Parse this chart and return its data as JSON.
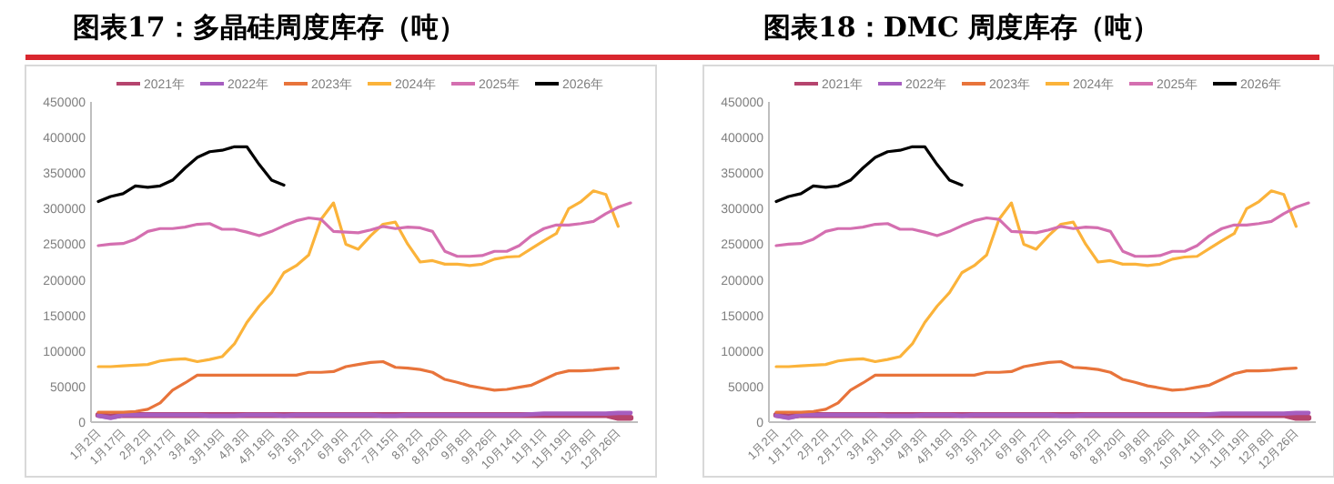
{
  "chart_data": [
    {
      "type": "line",
      "title": "图表17：多晶硅周度库存（吨）",
      "legend": "top",
      "grid": false,
      "marker": "none",
      "categories": [
        "1月2日",
        null,
        "1月17日",
        null,
        "2月2日",
        null,
        "2月17日",
        null,
        "3月4日",
        null,
        "3月19日",
        null,
        "4月3日",
        null,
        "4月18日",
        null,
        "5月3日",
        null,
        "5月21日",
        null,
        "6月9日",
        null,
        "6月27日",
        null,
        "7月15日",
        null,
        "8月2日",
        null,
        "8月20日",
        null,
        "9月8日",
        null,
        "9月26日",
        null,
        "10月14日",
        null,
        "11月1日",
        null,
        "11月19日",
        null,
        "12月8日",
        null,
        "12月26日",
        null
      ],
      "ylim": [
        0,
        450000
      ],
      "yticks": [
        0,
        50000,
        100000,
        150000,
        200000,
        250000,
        300000,
        350000,
        400000,
        450000
      ],
      "series": [
        {
          "name": "2021年",
          "color": "#b5446e",
          "values": [
            10000,
            8000,
            10000,
            10000,
            10000,
            10000,
            10000,
            10000,
            10000,
            10000,
            10000,
            10000,
            10000,
            10000,
            10000,
            10000,
            10000,
            10000,
            10000,
            10000,
            10000,
            10000,
            10000,
            10000,
            10000,
            10000,
            10000,
            10000,
            10000,
            10000,
            10000,
            10000,
            10000,
            10000,
            10000,
            10000,
            10000,
            10000,
            10000,
            10000,
            10000,
            10000,
            6000,
            6000
          ]
        },
        {
          "name": "2022年",
          "color": "#a65ec0",
          "values": [
            9000,
            6000,
            10000,
            10000,
            10000,
            10000,
            10000,
            10000,
            10000,
            9000,
            9000,
            9000,
            10000,
            10000,
            10000,
            9000,
            10000,
            10000,
            10000,
            10000,
            10000,
            10000,
            10000,
            9000,
            9000,
            10000,
            10000,
            10000,
            10000,
            10000,
            10000,
            10000,
            10000,
            10000,
            10000,
            11000,
            12000,
            12000,
            12000,
            12000,
            12000,
            12000,
            13000,
            13000
          ]
        },
        {
          "name": "2023年",
          "color": "#e8743b",
          "values": [
            14000,
            14000,
            14000,
            15000,
            18000,
            27000,
            45000,
            55000,
            66000,
            66000,
            66000,
            66000,
            66000,
            66000,
            66000,
            66000,
            66000,
            70000,
            70000,
            71000,
            78000,
            81000,
            84000,
            85000,
            77000,
            76000,
            74000,
            70000,
            60000,
            56000,
            51000,
            48000,
            45000,
            46000,
            49000,
            52000,
            60000,
            68000,
            72000,
            72000,
            73000,
            75000,
            76000,
            null
          ]
        },
        {
          "name": "2024年",
          "color": "#fbb33a",
          "values": [
            78000,
            78000,
            79000,
            80000,
            81000,
            86000,
            88000,
            89000,
            85000,
            88000,
            92000,
            110000,
            140000,
            163000,
            182000,
            210000,
            220000,
            235000,
            285000,
            308000,
            250000,
            243000,
            262000,
            278000,
            281000,
            250000,
            225000,
            227000,
            222000,
            222000,
            220000,
            222000,
            229000,
            232000,
            233000,
            244000,
            255000,
            265000,
            300000,
            310000,
            325000,
            320000,
            275000,
            null
          ]
        },
        {
          "name": "2025年",
          "color": "#d46fb0",
          "values": [
            248000,
            250000,
            251000,
            257000,
            268000,
            272000,
            272000,
            274000,
            278000,
            279000,
            271000,
            271000,
            267000,
            262000,
            268000,
            276000,
            283000,
            287000,
            285000,
            268000,
            267000,
            266000,
            270000,
            275000,
            272000,
            274000,
            273000,
            268000,
            240000,
            233000,
            233000,
            234000,
            240000,
            240000,
            248000,
            262000,
            272000,
            277000,
            277000,
            279000,
            282000,
            293000,
            302000,
            308000
          ]
        },
        {
          "name": "2026年",
          "color": "#000000",
          "values": [
            310000,
            317000,
            321000,
            332000,
            330000,
            332000,
            340000,
            357000,
            372000,
            380000,
            382000,
            387000,
            387000,
            362000,
            340000,
            333000,
            null,
            null,
            null,
            null,
            null,
            null,
            null,
            null,
            null,
            null,
            null,
            null,
            null,
            null,
            null,
            null,
            null,
            null,
            null,
            null,
            null,
            null,
            null,
            null,
            null,
            null,
            null,
            null
          ]
        }
      ]
    },
    {
      "type": "line",
      "title": "图表18：DMC 周度库存（吨）",
      "legend": "top",
      "grid": false,
      "marker": "none",
      "categories": [
        "1月2日",
        null,
        "1月17日",
        null,
        "2月2日",
        null,
        "2月17日",
        null,
        "3月4日",
        null,
        "3月19日",
        null,
        "4月3日",
        null,
        "4月18日",
        null,
        "5月3日",
        null,
        "5月21日",
        null,
        "6月9日",
        null,
        "6月27日",
        null,
        "7月15日",
        null,
        "8月2日",
        null,
        "8月20日",
        null,
        "9月8日",
        null,
        "9月26日",
        null,
        "10月14日",
        null,
        "11月1日",
        null,
        "11月19日",
        null,
        "12月8日",
        null,
        "12月26日",
        null
      ],
      "ylim": [
        0,
        450000
      ],
      "yticks": [
        0,
        50000,
        100000,
        150000,
        200000,
        250000,
        300000,
        350000,
        400000,
        450000
      ],
      "series": [
        {
          "name": "2021年",
          "color": "#b5446e",
          "values": [
            10000,
            8000,
            10000,
            10000,
            10000,
            10000,
            10000,
            10000,
            10000,
            10000,
            10000,
            10000,
            10000,
            10000,
            10000,
            10000,
            10000,
            10000,
            10000,
            10000,
            10000,
            10000,
            10000,
            10000,
            10000,
            10000,
            10000,
            10000,
            10000,
            10000,
            10000,
            10000,
            10000,
            10000,
            10000,
            10000,
            10000,
            10000,
            10000,
            10000,
            10000,
            10000,
            6000,
            6000
          ]
        },
        {
          "name": "2022年",
          "color": "#a65ec0",
          "values": [
            9000,
            6000,
            10000,
            10000,
            10000,
            10000,
            10000,
            10000,
            10000,
            9000,
            9000,
            9000,
            10000,
            10000,
            10000,
            9000,
            10000,
            10000,
            10000,
            10000,
            10000,
            10000,
            10000,
            9000,
            9000,
            10000,
            10000,
            10000,
            10000,
            10000,
            10000,
            10000,
            10000,
            10000,
            10000,
            11000,
            12000,
            12000,
            12000,
            12000,
            12000,
            12000,
            13000,
            13000
          ]
        },
        {
          "name": "2023年",
          "color": "#e8743b",
          "values": [
            14000,
            14000,
            14000,
            15000,
            18000,
            27000,
            45000,
            55000,
            66000,
            66000,
            66000,
            66000,
            66000,
            66000,
            66000,
            66000,
            66000,
            70000,
            70000,
            71000,
            78000,
            81000,
            84000,
            85000,
            77000,
            76000,
            74000,
            70000,
            60000,
            56000,
            51000,
            48000,
            45000,
            46000,
            49000,
            52000,
            60000,
            68000,
            72000,
            72000,
            73000,
            75000,
            76000,
            null
          ]
        },
        {
          "name": "2024年",
          "color": "#fbb33a",
          "values": [
            78000,
            78000,
            79000,
            80000,
            81000,
            86000,
            88000,
            89000,
            85000,
            88000,
            92000,
            110000,
            140000,
            163000,
            182000,
            210000,
            220000,
            235000,
            285000,
            308000,
            250000,
            243000,
            262000,
            278000,
            281000,
            250000,
            225000,
            227000,
            222000,
            222000,
            220000,
            222000,
            229000,
            232000,
            233000,
            244000,
            255000,
            265000,
            300000,
            310000,
            325000,
            320000,
            275000,
            null
          ]
        },
        {
          "name": "2025年",
          "color": "#d46fb0",
          "values": [
            248000,
            250000,
            251000,
            257000,
            268000,
            272000,
            272000,
            274000,
            278000,
            279000,
            271000,
            271000,
            267000,
            262000,
            268000,
            276000,
            283000,
            287000,
            285000,
            268000,
            267000,
            266000,
            270000,
            275000,
            272000,
            274000,
            273000,
            268000,
            240000,
            233000,
            233000,
            234000,
            240000,
            240000,
            248000,
            262000,
            272000,
            277000,
            277000,
            279000,
            282000,
            293000,
            302000,
            308000
          ]
        },
        {
          "name": "2026年",
          "color": "#000000",
          "values": [
            310000,
            317000,
            321000,
            332000,
            330000,
            332000,
            340000,
            357000,
            372000,
            380000,
            382000,
            387000,
            387000,
            362000,
            340000,
            333000,
            null,
            null,
            null,
            null,
            null,
            null,
            null,
            null,
            null,
            null,
            null,
            null,
            null,
            null,
            null,
            null,
            null,
            null,
            null,
            null,
            null,
            null,
            null,
            null,
            null,
            null,
            null,
            null
          ]
        }
      ]
    }
  ]
}
